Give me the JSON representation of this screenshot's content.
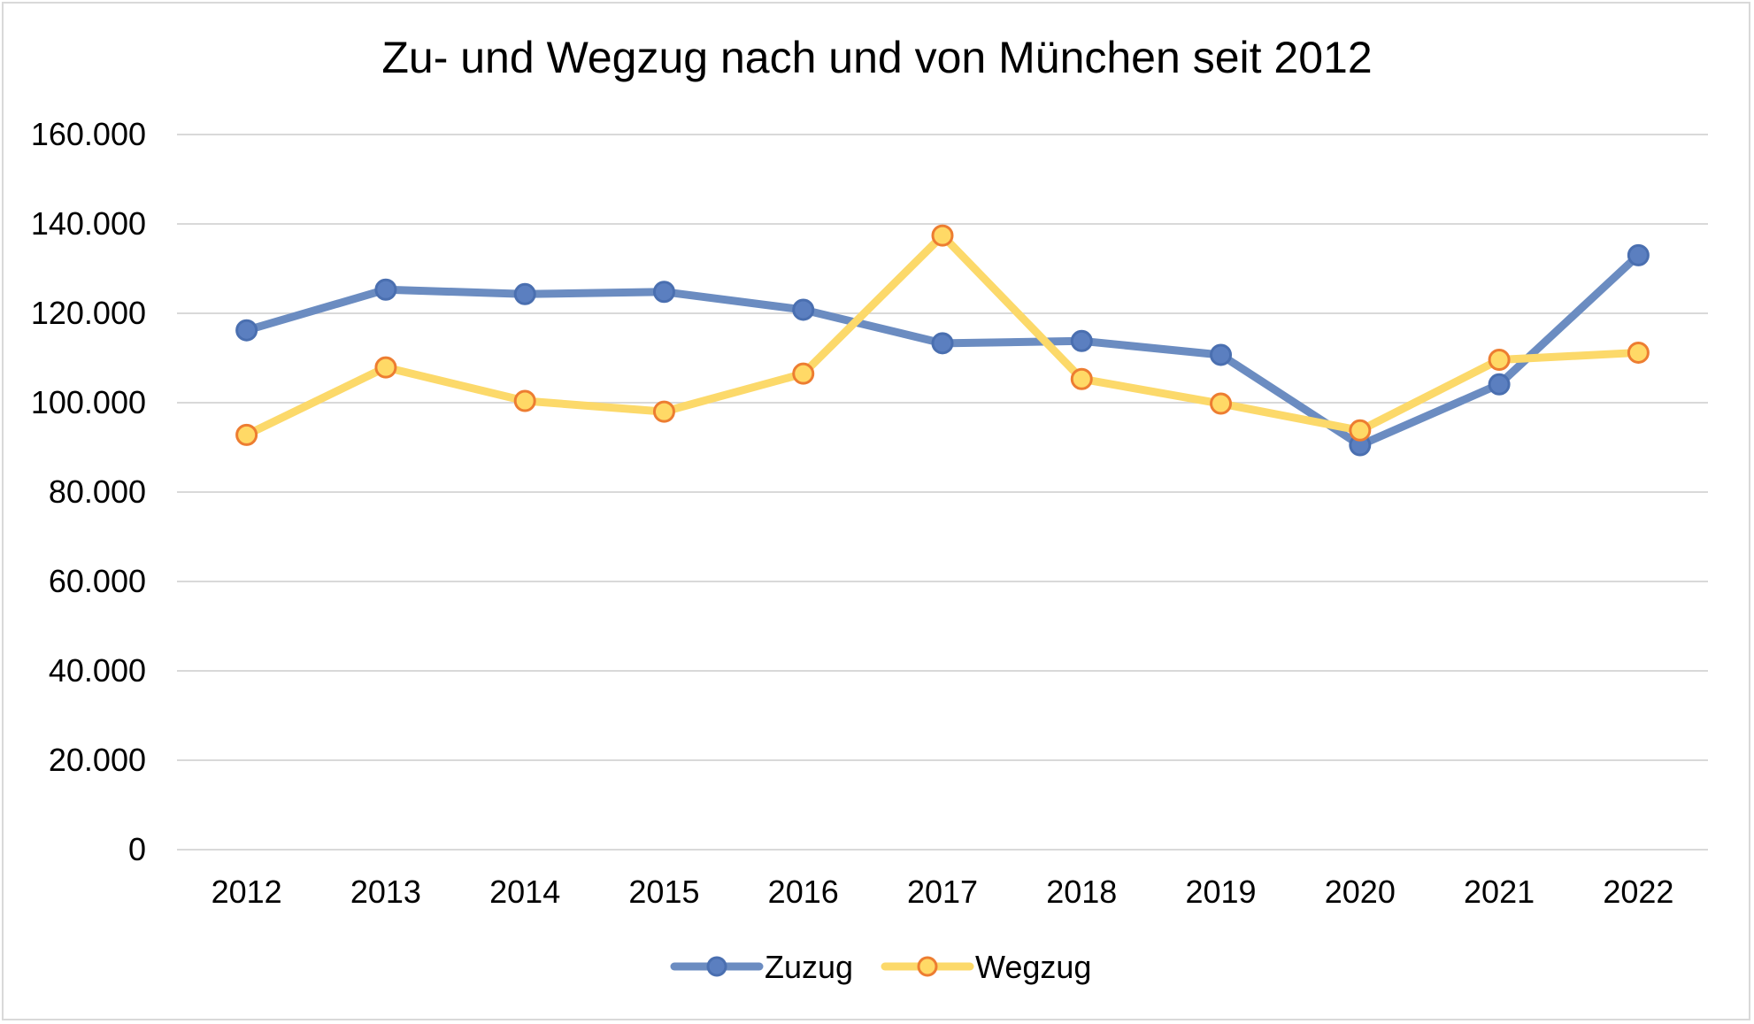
{
  "chart_data": {
    "type": "line",
    "title": "Zu- und Wegzug nach und von München seit 2012",
    "xlabel": "",
    "ylabel": "",
    "categories": [
      "2012",
      "2013",
      "2014",
      "2015",
      "2016",
      "2017",
      "2018",
      "2019",
      "2020",
      "2021",
      "2022"
    ],
    "y_ticks": [
      "0",
      "20.000",
      "40.000",
      "60.000",
      "80.000",
      "100.000",
      "120.000",
      "140.000",
      "160.000"
    ],
    "ylim": [
      0,
      160000
    ],
    "grid": true,
    "legend_position": "bottom",
    "series": [
      {
        "name": "Zuzug",
        "color": "#6b8cc1",
        "marker_fill": "#5b7fc0",
        "marker_stroke": "#4a6fb0",
        "values": [
          116200,
          125300,
          124300,
          124800,
          120800,
          113300,
          113800,
          110700,
          90500,
          104100,
          133000
        ]
      },
      {
        "name": "Wegzug",
        "color": "#fcd96a",
        "marker_fill": "#ffd966",
        "marker_stroke": "#ed7d31",
        "values": [
          92800,
          107900,
          100400,
          98000,
          106500,
          137400,
          105300,
          99800,
          93800,
          109600,
          111200
        ]
      }
    ]
  }
}
